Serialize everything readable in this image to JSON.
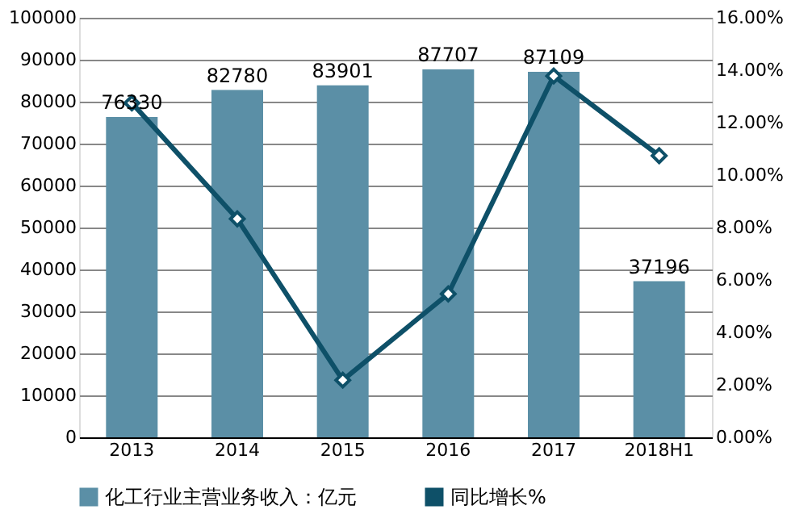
{
  "chart_data": {
    "type": "bar",
    "categories": [
      "2013",
      "2014",
      "2015",
      "2016",
      "2017",
      "2018H1"
    ],
    "series": [
      {
        "name": "化工行业主营业务收入：亿元",
        "color": "#5b8fa6",
        "values": [
          76330,
          82780,
          83901,
          87707,
          87109,
          37196
        ],
        "value_labels": [
          "76330",
          "82780",
          "83901",
          "87707",
          "87109",
          "37196"
        ]
      },
      {
        "name": "同比增长%",
        "type": "line",
        "axis": "y2",
        "color": "#0e5068",
        "marker": "diamond",
        "values": [
          12.75,
          8.33,
          2.18,
          5.47,
          13.78,
          10.74
        ]
      }
    ],
    "ylim": [
      0,
      100000
    ],
    "yticks": [
      0,
      10000,
      20000,
      30000,
      40000,
      50000,
      60000,
      70000,
      80000,
      90000,
      100000
    ],
    "y2lim": [
      0,
      16
    ],
    "y2ticks": [
      {
        "value": 0,
        "label": "0.00%"
      },
      {
        "value": 2,
        "label": "2.00%"
      },
      {
        "value": 4,
        "label": "4.00%"
      },
      {
        "value": 6,
        "label": "6.00%"
      },
      {
        "value": 8,
        "label": "8.00%"
      },
      {
        "value": 10,
        "label": "10.00%"
      },
      {
        "value": 12,
        "label": "12.00%"
      },
      {
        "value": 14,
        "label": "14.00%"
      },
      {
        "value": 16,
        "label": "16.00%"
      }
    ],
    "grid": "y",
    "legend": "bottom"
  }
}
